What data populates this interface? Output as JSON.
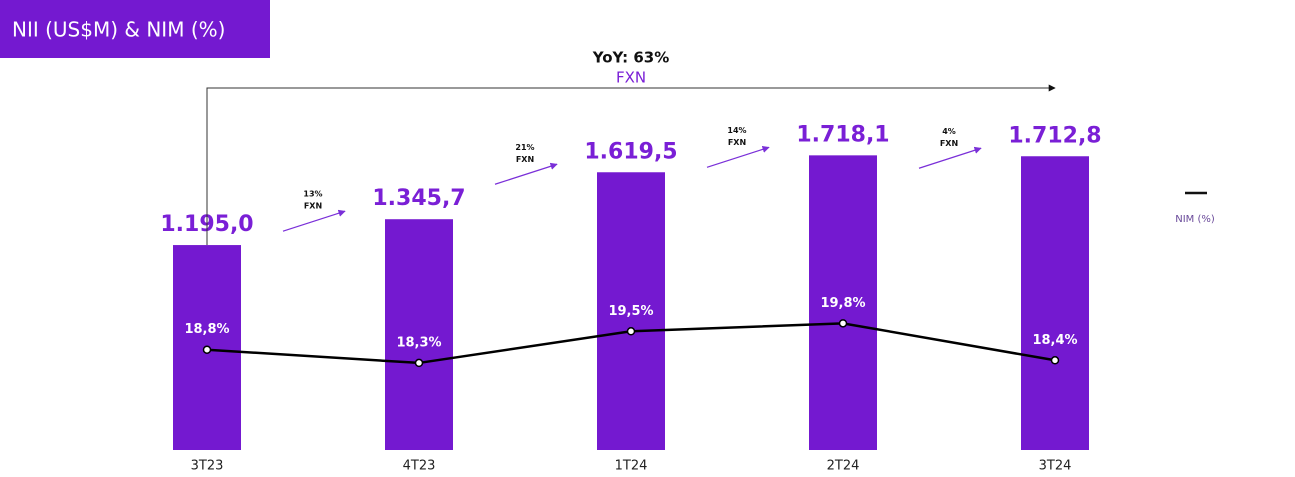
{
  "chart_data": {
    "type": "bar_line",
    "title": "NII (US$M) & NIM (%)",
    "categories": [
      "3T23",
      "4T23",
      "1T24",
      "2T24",
      "3T24"
    ],
    "ylim": [
      0,
      2000
    ],
    "y2lim": [
      15,
      28
    ],
    "series": [
      {
        "name": "NII (US$M)",
        "type": "bar",
        "color": "#7419d0",
        "values": [
          1195.0,
          1345.7,
          1619.5,
          1718.1,
          1712.8
        ],
        "value_labels": [
          "1.195,0",
          "1.345,7",
          "1.619,5",
          "1.718,1",
          "1.712,8"
        ]
      },
      {
        "name": "NIM (%)",
        "type": "line",
        "axis": "y2",
        "color": "#000000",
        "values": [
          18.8,
          18.3,
          19.5,
          19.8,
          18.4
        ],
        "value_labels": [
          "18,8%",
          "18,3%",
          "19,5%",
          "19,8%",
          "18,4%"
        ]
      }
    ],
    "growth_annotations": [
      {
        "lines": [
          "13%",
          "FXN"
        ]
      },
      {
        "lines": [
          "21%",
          "FXN"
        ]
      },
      {
        "lines": [
          "14%",
          "FXN"
        ]
      },
      {
        "lines": [
          "4%",
          "FXN"
        ]
      }
    ],
    "yoy_annotation": {
      "lines": [
        "YoY: 63%",
        "FXN"
      ]
    }
  }
}
